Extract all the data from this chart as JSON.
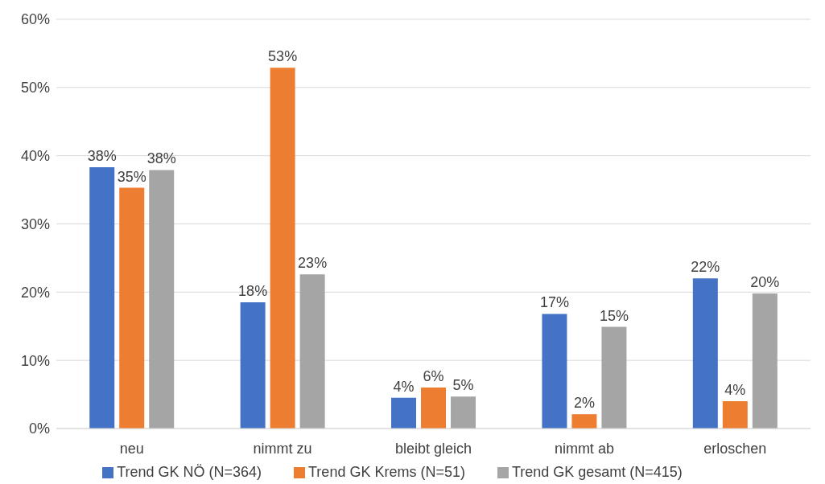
{
  "chart_data": {
    "type": "bar",
    "categories": [
      "neu",
      "nimmt zu",
      "bleibt gleich",
      "nimmt ab",
      "erloschen"
    ],
    "series": [
      {
        "name": "Trend GK NÖ (N=364)",
        "color": "#4472c4",
        "values": [
          38.3,
          18.5,
          4.5,
          16.8,
          22.0
        ],
        "value_labels": [
          "38%",
          "18%",
          "4%",
          "17%",
          "22%"
        ]
      },
      {
        "name": "Trend GK Krems (N=51)",
        "color": "#ed7d31",
        "values": [
          35.3,
          52.9,
          6.0,
          2.1,
          4.0
        ],
        "value_labels": [
          "35%",
          "53%",
          "6%",
          "2%",
          "4%"
        ]
      },
      {
        "name": "Trend GK gesamt (N=415)",
        "color": "#a5a5a5",
        "values": [
          37.9,
          22.6,
          4.7,
          14.9,
          19.8
        ],
        "value_labels": [
          "38%",
          "23%",
          "5%",
          "15%",
          "20%"
        ]
      }
    ],
    "ylim": [
      0,
      60
    ],
    "yticks": [
      {
        "value": 0,
        "label": "0%"
      },
      {
        "value": 10,
        "label": "10%"
      },
      {
        "value": 20,
        "label": "20%"
      },
      {
        "value": 30,
        "label": "30%"
      },
      {
        "value": 40,
        "label": "40%"
      },
      {
        "value": 50,
        "label": "50%"
      },
      {
        "value": 60,
        "label": "60%"
      }
    ],
    "grid": "y",
    "legend": "bottom"
  }
}
